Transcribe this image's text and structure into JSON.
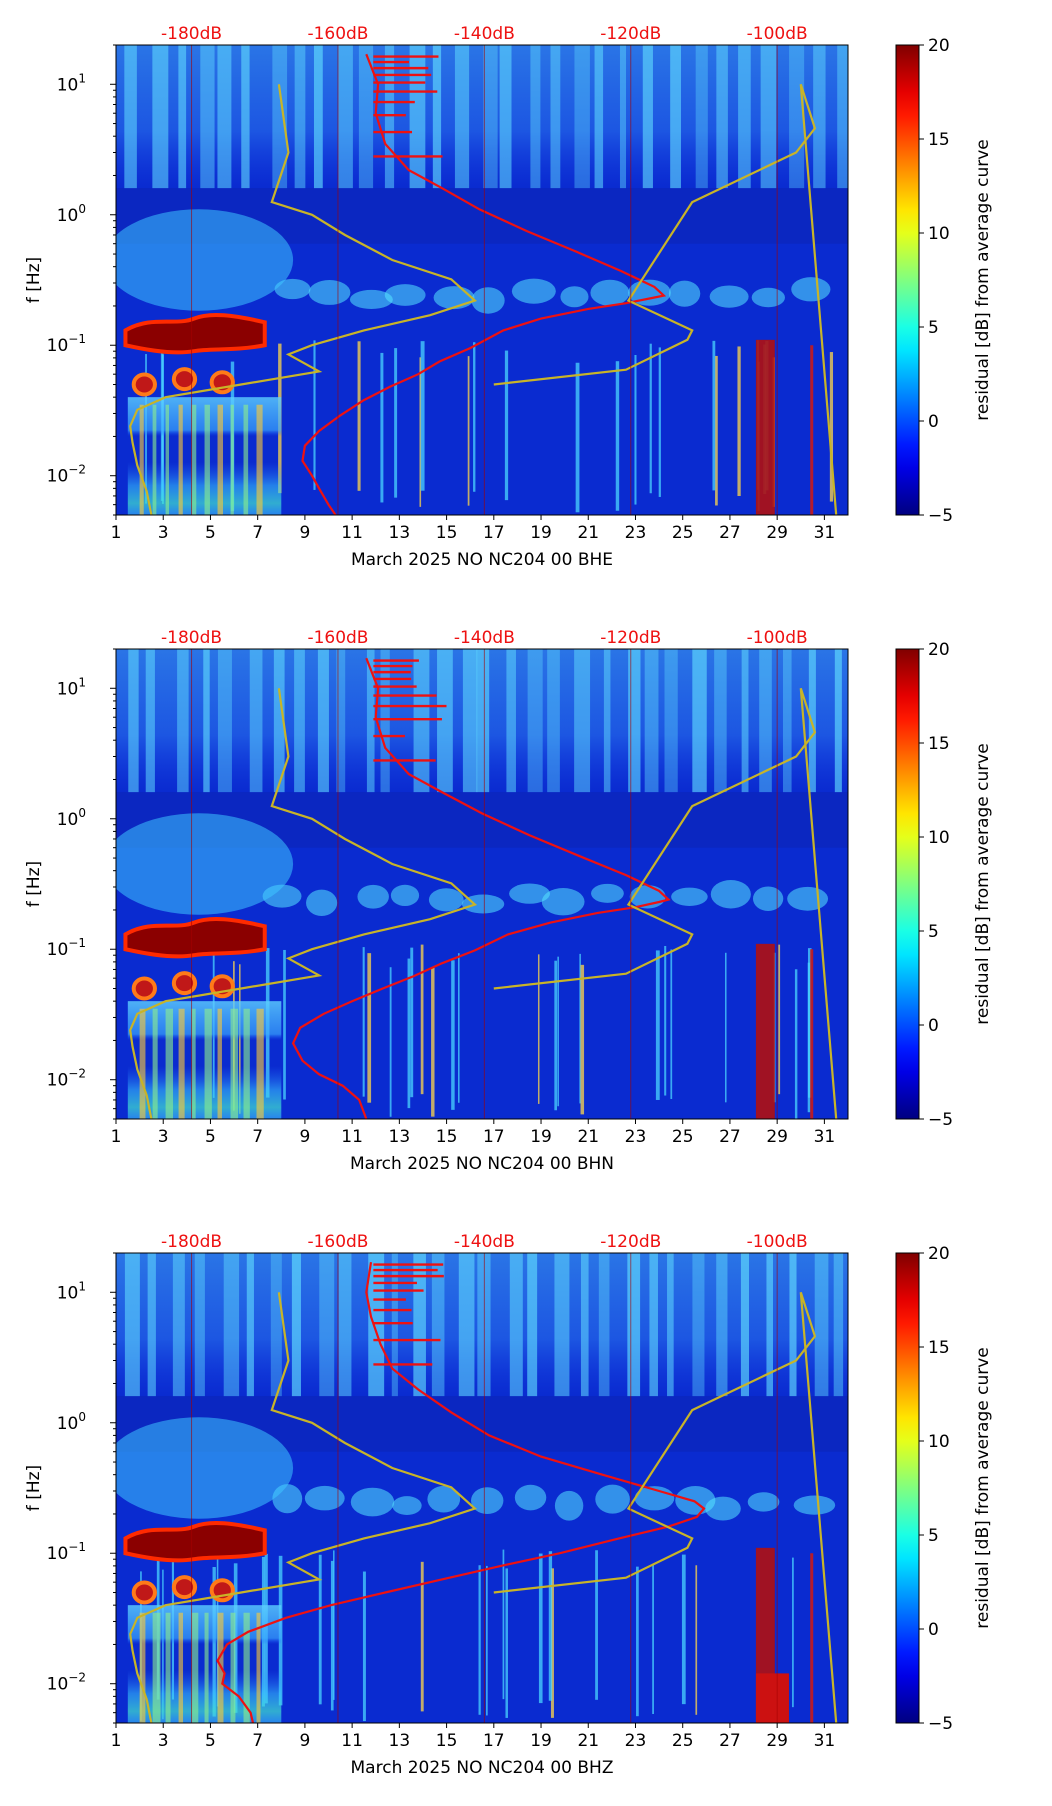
{
  "figure": {
    "x_ticks": [
      "1",
      "3",
      "5",
      "7",
      "9",
      "11",
      "13",
      "15",
      "17",
      "19",
      "21",
      "23",
      "25",
      "27",
      "29",
      "31"
    ],
    "y_ticks": [
      {
        "base": "10",
        "exp": "1"
      },
      {
        "base": "10",
        "exp": "0"
      },
      {
        "base": "10",
        "exp": "−1"
      },
      {
        "base": "10",
        "exp": "−2"
      }
    ],
    "top_db_labels": [
      "-180dB",
      "-160dB",
      "-140dB",
      "-120dB",
      "-100dB"
    ],
    "colorbar_ticks": [
      "20",
      "15",
      "10",
      "5",
      "0",
      "−5"
    ],
    "colors": {
      "red_curve": "#ee1111",
      "yellow_curve": "#c8b428",
      "db_label": "#ee1111",
      "spectrogram_bg": "#0a2bd0"
    }
  },
  "chart_data": [
    {
      "type": "heatmap",
      "channel": "BHE",
      "xlabel": "March 2025 NO NC204 00 BHE",
      "ylabel": "f [Hz]",
      "xlim": [
        1,
        32
      ],
      "ylim": [
        0.005,
        20
      ],
      "yscale": "log",
      "colorbar_label": "residual [dB] from average curve",
      "colorbar_range": [
        -5,
        20
      ],
      "colormap": "jet",
      "top_axis": {
        "labels": [
          "-180dB",
          "-160dB",
          "-140dB",
          "-120dB",
          "-100dB"
        ],
        "positions": [
          4.2,
          10.4,
          16.6,
          22.8,
          29.0
        ]
      },
      "overlay_red_curve": {
        "x": [
          10.3,
          10.0,
          9.6,
          9.3,
          8.9,
          9.0,
          9.6,
          10.5,
          11.5,
          12.6,
          13.8,
          14.7,
          16.0,
          17.4,
          19.0,
          21.0,
          22.6,
          23.7,
          24.2,
          23.8,
          22.4,
          20.5,
          18.4,
          16.4,
          14.8,
          13.4,
          12.4,
          12.0,
          12.1,
          11.6
        ],
        "f": [
          0.005,
          0.006,
          0.008,
          0.01,
          0.013,
          0.017,
          0.022,
          0.029,
          0.038,
          0.048,
          0.06,
          0.075,
          0.095,
          0.13,
          0.16,
          0.19,
          0.21,
          0.23,
          0.24,
          0.28,
          0.37,
          0.52,
          0.75,
          1.1,
          1.6,
          2.2,
          3.5,
          6.0,
          10.0,
          17.0
        ]
      },
      "overlay_yellow_curve": {
        "x": [
          2.5,
          2.3,
          1.9,
          1.7,
          1.6,
          1.9,
          3.1,
          6.3,
          9.6,
          8.3,
          9.3,
          11.5,
          14.3,
          16.2,
          15.2,
          12.7,
          10.7,
          9.3,
          7.6,
          8.3,
          7.9,
          17.0,
          22.6,
          25.2,
          25.4,
          22.7,
          25.4,
          29.8,
          30.6,
          30.0,
          31.5
        ],
        "f": [
          0.005,
          0.0076,
          0.012,
          0.018,
          0.024,
          0.032,
          0.04,
          0.05,
          0.063,
          0.085,
          0.1,
          0.13,
          0.17,
          0.22,
          0.32,
          0.45,
          0.7,
          1.0,
          1.25,
          3.0,
          10.0,
          0.05,
          0.065,
          0.11,
          0.13,
          0.22,
          1.25,
          3.0,
          4.6,
          10.0,
          0.005
        ]
      }
    },
    {
      "type": "heatmap",
      "channel": "BHN",
      "xlabel": "March 2025 NO NC204 00 BHN",
      "ylabel": "f [Hz]",
      "xlim": [
        1,
        32
      ],
      "ylim": [
        0.005,
        20
      ],
      "yscale": "log",
      "colorbar_label": "residual [dB] from average curve",
      "colorbar_range": [
        -5,
        20
      ],
      "colormap": "jet",
      "top_axis": {
        "labels": [
          "-180dB",
          "-160dB",
          "-140dB",
          "-120dB",
          "-100dB"
        ],
        "positions": [
          4.2,
          10.4,
          16.6,
          22.8,
          29.0
        ]
      },
      "overlay_red_curve": {
        "x": [
          11.6,
          11.3,
          10.6,
          9.6,
          8.9,
          8.5,
          8.8,
          9.8,
          11.0,
          12.3,
          13.6,
          14.8,
          16.2,
          17.6,
          19.4,
          21.4,
          23.0,
          24.0,
          24.4,
          24.0,
          22.6,
          20.6,
          18.5,
          16.5,
          14.8,
          13.4,
          12.4,
          12.0,
          12.1,
          11.6
        ],
        "f": [
          0.005,
          0.007,
          0.009,
          0.011,
          0.014,
          0.019,
          0.025,
          0.032,
          0.04,
          0.05,
          0.062,
          0.078,
          0.098,
          0.13,
          0.16,
          0.19,
          0.21,
          0.23,
          0.24,
          0.28,
          0.37,
          0.52,
          0.75,
          1.1,
          1.6,
          2.2,
          3.5,
          6.0,
          10.0,
          17.0
        ]
      },
      "overlay_yellow_curve": {
        "x": [
          2.5,
          2.3,
          1.9,
          1.7,
          1.6,
          1.9,
          3.1,
          6.3,
          9.6,
          8.3,
          9.3,
          11.5,
          14.3,
          16.2,
          15.2,
          12.7,
          10.7,
          9.3,
          7.6,
          8.3,
          7.9,
          17.0,
          22.6,
          25.2,
          25.4,
          22.7,
          25.4,
          29.8,
          30.6,
          30.0,
          31.5
        ],
        "f": [
          0.005,
          0.0076,
          0.012,
          0.018,
          0.024,
          0.032,
          0.04,
          0.05,
          0.063,
          0.085,
          0.1,
          0.13,
          0.17,
          0.22,
          0.32,
          0.45,
          0.7,
          1.0,
          1.25,
          3.0,
          10.0,
          0.05,
          0.065,
          0.11,
          0.13,
          0.22,
          1.25,
          3.0,
          4.6,
          10.0,
          0.005
        ]
      }
    },
    {
      "type": "heatmap",
      "channel": "BHZ",
      "xlabel": "March 2025 NO NC204 00 BHZ",
      "ylabel": "f [Hz]",
      "xlim": [
        1,
        32
      ],
      "ylim": [
        0.005,
        20
      ],
      "yscale": "log",
      "colorbar_label": "residual [dB] from average curve",
      "colorbar_range": [
        -5,
        20
      ],
      "colormap": "jet",
      "top_axis": {
        "labels": [
          "-180dB",
          "-160dB",
          "-140dB",
          "-120dB",
          "-100dB"
        ],
        "positions": [
          4.2,
          10.4,
          16.6,
          22.8,
          29.0
        ]
      },
      "overlay_red_curve": {
        "x": [
          6.8,
          6.7,
          6.2,
          5.5,
          5.6,
          5.3,
          5.7,
          6.6,
          8.2,
          10.1,
          12.4,
          14.8,
          17.3,
          19.8,
          22.3,
          24.4,
          25.6,
          25.9,
          25.5,
          24.0,
          21.6,
          19.0,
          16.8,
          15.2,
          13.8,
          12.7,
          12.2,
          11.8,
          11.6,
          11.8
        ],
        "f": [
          0.005,
          0.006,
          0.008,
          0.01,
          0.012,
          0.015,
          0.02,
          0.025,
          0.032,
          0.04,
          0.05,
          0.063,
          0.08,
          0.1,
          0.13,
          0.16,
          0.19,
          0.22,
          0.25,
          0.3,
          0.4,
          0.55,
          0.8,
          1.2,
          1.8,
          2.6,
          4.0,
          6.5,
          10.0,
          17.0
        ]
      },
      "overlay_yellow_curve": {
        "x": [
          2.5,
          2.3,
          1.9,
          1.7,
          1.6,
          1.9,
          3.1,
          6.3,
          9.6,
          8.3,
          9.3,
          11.5,
          14.3,
          16.2,
          15.2,
          12.7,
          10.7,
          9.3,
          7.6,
          8.3,
          7.9,
          17.0,
          22.6,
          25.2,
          25.4,
          22.7,
          25.4,
          29.8,
          30.6,
          30.0,
          31.5
        ],
        "f": [
          0.005,
          0.0076,
          0.012,
          0.018,
          0.024,
          0.032,
          0.04,
          0.05,
          0.063,
          0.085,
          0.1,
          0.13,
          0.17,
          0.22,
          0.32,
          0.45,
          0.7,
          1.0,
          1.25,
          3.0,
          10.0,
          0.05,
          0.065,
          0.11,
          0.13,
          0.22,
          1.25,
          3.0,
          4.6,
          10.0,
          0.005
        ]
      }
    }
  ]
}
